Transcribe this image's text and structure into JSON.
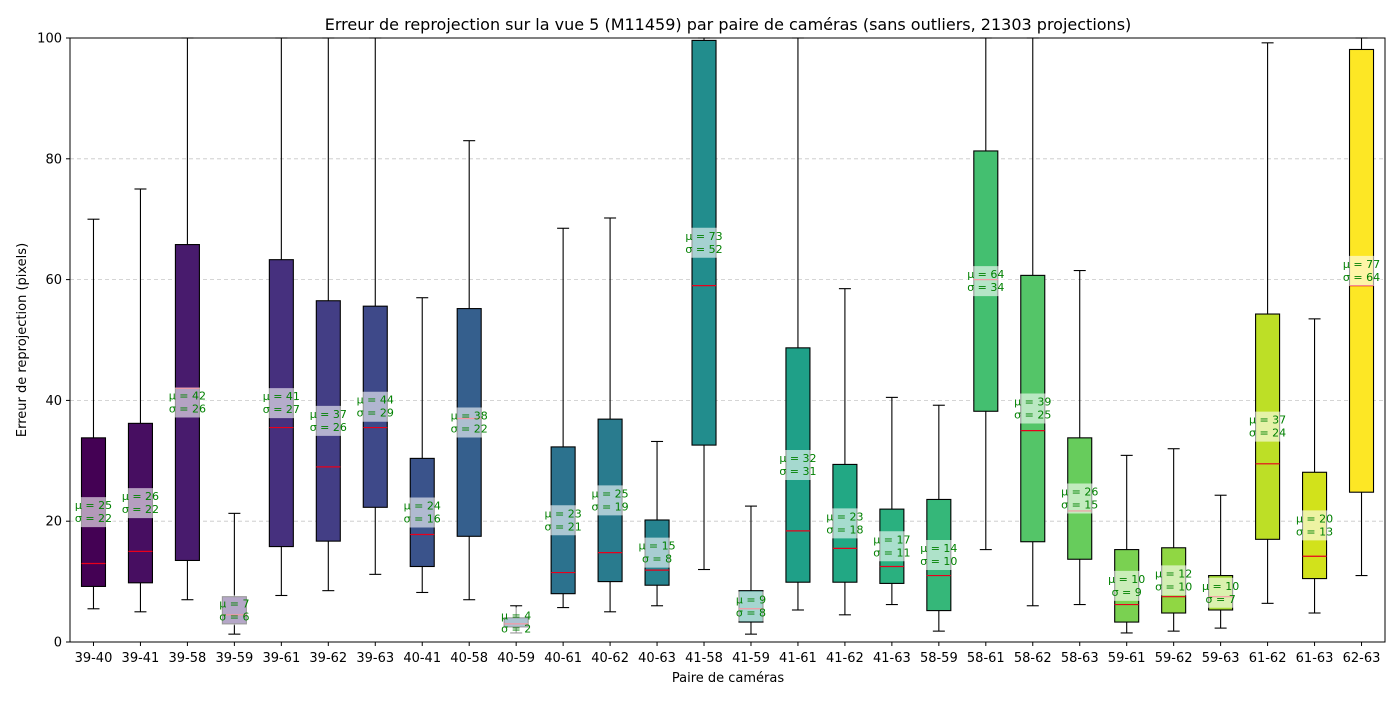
{
  "chart_data": {
    "type": "box",
    "title": "Erreur de reprojection sur la vue 5 (M11459) par paire de caméras (sans outliers, 21303 projections)",
    "xlabel": "Paire de caméras",
    "ylabel": "Erreur de reprojection (pixels)",
    "ylim": [
      0,
      100
    ],
    "yticks": [
      0,
      20,
      40,
      60,
      80,
      100
    ],
    "grid": "y-dashed",
    "colormap": "viridis",
    "median_color": "#e8001c",
    "annotation_color": "#008000",
    "categories": [
      "39-40",
      "39-41",
      "39-58",
      "39-59",
      "39-61",
      "39-62",
      "39-63",
      "40-41",
      "40-58",
      "40-59",
      "40-61",
      "40-62",
      "40-63",
      "41-58",
      "41-59",
      "41-61",
      "41-62",
      "41-63",
      "58-59",
      "58-61",
      "58-62",
      "58-63",
      "59-61",
      "59-62",
      "59-63",
      "61-62",
      "61-63",
      "62-63"
    ],
    "boxes": [
      {
        "pair": "39-40",
        "whislo": 5.5,
        "q1": 9.2,
        "med": 13,
        "q3": 33.8,
        "whishi": 70,
        "mean_label": "μ = 25",
        "std_label": "σ = 22",
        "color": "#440154"
      },
      {
        "pair": "39-41",
        "whislo": 5,
        "q1": 9.8,
        "med": 15,
        "q3": 36.2,
        "whishi": 75,
        "mean_label": "μ = 26",
        "std_label": "σ = 22",
        "color": "#470e61"
      },
      {
        "pair": "39-58",
        "whislo": 7,
        "q1": 13.5,
        "med": 42,
        "q3": 65.8,
        "whishi": 100,
        "mean_label": "μ = 42",
        "std_label": "σ = 26",
        "color": "#481b6d"
      },
      {
        "pair": "39-59",
        "whislo": 1.3,
        "q1": 3,
        "med": 4.5,
        "q3": 7.5,
        "whishi": 21.3,
        "mean_label": "μ = 7",
        "std_label": "σ = 6",
        "color": "#482575"
      },
      {
        "pair": "39-61",
        "whislo": 7.7,
        "q1": 15.8,
        "med": 35.5,
        "q3": 63.3,
        "whishi": 100,
        "mean_label": "μ = 41",
        "std_label": "σ = 27",
        "color": "#46307e"
      },
      {
        "pair": "39-62",
        "whislo": 8.5,
        "q1": 16.7,
        "med": 29,
        "q3": 56.5,
        "whishi": 100,
        "mean_label": "μ = 37",
        "std_label": "σ = 26",
        "color": "#433e85"
      },
      {
        "pair": "39-63",
        "whislo": 11.2,
        "q1": 22.3,
        "med": 35.5,
        "q3": 55.6,
        "whishi": 100,
        "mean_label": "μ = 44",
        "std_label": "σ = 29",
        "color": "#3e4989"
      },
      {
        "pair": "40-41",
        "whislo": 8.2,
        "q1": 12.5,
        "med": 17.8,
        "q3": 30.4,
        "whishi": 57,
        "mean_label": "μ = 24",
        "std_label": "σ = 16",
        "color": "#3a538b"
      },
      {
        "pair": "40-58",
        "whislo": 7,
        "q1": 17.5,
        "med": 37,
        "q3": 55.2,
        "whishi": 83,
        "mean_label": "μ = 38",
        "std_label": "σ = 22",
        "color": "#355f8d"
      },
      {
        "pair": "40-59",
        "whislo": 1.5,
        "q1": 2.5,
        "med": 3,
        "q3": 4,
        "whishi": 6,
        "mean_label": "μ = 4",
        "std_label": "σ = 2",
        "color": "#30698e"
      },
      {
        "pair": "40-61",
        "whislo": 5.7,
        "q1": 8,
        "med": 11.5,
        "q3": 32.3,
        "whishi": 68.5,
        "mean_label": "μ = 23",
        "std_label": "σ = 21",
        "color": "#2c728e"
      },
      {
        "pair": "40-62",
        "whislo": 5,
        "q1": 10,
        "med": 14.8,
        "q3": 36.9,
        "whishi": 70.2,
        "mean_label": "μ = 25",
        "std_label": "σ = 19",
        "color": "#297b8e"
      },
      {
        "pair": "40-63",
        "whislo": 6,
        "q1": 9.4,
        "med": 11.9,
        "q3": 20.2,
        "whishi": 33.2,
        "mean_label": "μ = 15",
        "std_label": "σ = 8",
        "color": "#26838f"
      },
      {
        "pair": "41-58",
        "whislo": 12,
        "q1": 32.6,
        "med": 59,
        "q3": 99.6,
        "whishi": 100,
        "mean_label": "μ = 73",
        "std_label": "σ = 52",
        "color": "#228d8d"
      },
      {
        "pair": "41-59",
        "whislo": 1.3,
        "q1": 3.3,
        "med": 5.5,
        "q3": 8.5,
        "whishi": 22.5,
        "mean_label": "μ = 9",
        "std_label": "σ = 8",
        "color": "#1f968b"
      },
      {
        "pair": "41-61",
        "whislo": 5.3,
        "q1": 9.9,
        "med": 18.4,
        "q3": 48.7,
        "whishi": 100,
        "mean_label": "μ = 32",
        "std_label": "σ = 31",
        "color": "#1fa088"
      },
      {
        "pair": "41-62",
        "whislo": 4.5,
        "q1": 9.9,
        "med": 15.5,
        "q3": 29.4,
        "whishi": 58.5,
        "mean_label": "μ = 23",
        "std_label": "σ = 18",
        "color": "#22a884"
      },
      {
        "pair": "41-63",
        "whislo": 6.2,
        "q1": 9.7,
        "med": 12.5,
        "q3": 22,
        "whishi": 40.5,
        "mean_label": "μ = 17",
        "std_label": "σ = 11",
        "color": "#2ab07f"
      },
      {
        "pair": "58-59",
        "whislo": 1.8,
        "q1": 5.2,
        "med": 11,
        "q3": 23.6,
        "whishi": 39.2,
        "mean_label": "μ = 14",
        "std_label": "σ = 10",
        "color": "#35b779"
      },
      {
        "pair": "58-61",
        "whislo": 15.3,
        "q1": 38.2,
        "med": 60,
        "q3": 81.3,
        "whishi": 100,
        "mean_label": "μ = 64",
        "std_label": "σ = 34",
        "color": "#44bf70"
      },
      {
        "pair": "58-62",
        "whislo": 6,
        "q1": 16.6,
        "med": 35,
        "q3": 60.7,
        "whishi": 100,
        "mean_label": "μ = 39",
        "std_label": "σ = 25",
        "color": "#54c568"
      },
      {
        "pair": "58-63",
        "whislo": 6.2,
        "q1": 13.7,
        "med": 21.7,
        "q3": 33.8,
        "whishi": 61.5,
        "mean_label": "μ = 26",
        "std_label": "σ = 15",
        "color": "#67cc5c"
      },
      {
        "pair": "59-61",
        "whislo": 1.5,
        "q1": 3.3,
        "med": 6.2,
        "q3": 15.3,
        "whishi": 30.9,
        "mean_label": "μ = 10",
        "std_label": "σ = 9",
        "color": "#7ad151"
      },
      {
        "pair": "59-62",
        "whislo": 1.8,
        "q1": 4.8,
        "med": 7.5,
        "q3": 15.6,
        "whishi": 32,
        "mean_label": "μ = 12",
        "std_label": "σ = 10",
        "color": "#90d743"
      },
      {
        "pair": "59-63",
        "whislo": 2.3,
        "q1": 5.3,
        "med": 7.5,
        "q3": 11,
        "whishi": 24.3,
        "mean_label": "μ = 10",
        "std_label": "σ = 7",
        "color": "#a5db36"
      },
      {
        "pair": "61-62",
        "whislo": 6.4,
        "q1": 17,
        "med": 29.5,
        "q3": 54.3,
        "whishi": 99.2,
        "mean_label": "μ = 37",
        "std_label": "σ = 24",
        "color": "#bddf26"
      },
      {
        "pair": "61-63",
        "whislo": 4.8,
        "q1": 10.5,
        "med": 14.2,
        "q3": 28.1,
        "whishi": 53.5,
        "mean_label": "μ = 20",
        "std_label": "σ = 13",
        "color": "#d2e21b"
      },
      {
        "pair": "62-63",
        "whislo": 11,
        "q1": 24.8,
        "med": 59,
        "q3": 98.1,
        "whishi": 100,
        "mean_label": "μ = 77",
        "std_label": "σ = 64",
        "color": "#fde725"
      }
    ]
  }
}
